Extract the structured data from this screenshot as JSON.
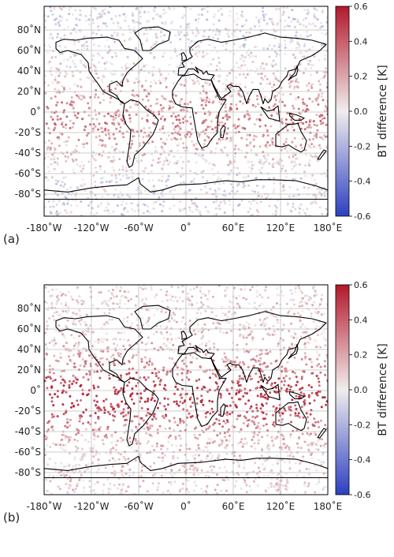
{
  "panels": [
    {
      "label": "(a)",
      "intensity": 0.55,
      "colorbar": {
        "label": "BT difference [K]",
        "ticks": [
          "0.6",
          "0.4",
          "0.2",
          "0.0",
          "-0.2",
          "-0.4",
          "-0.6"
        ]
      },
      "xticks": [
        "-180˚W",
        "-120˚W",
        "-60˚W",
        "0˚",
        "60˚E",
        "120˚E",
        "180˚E"
      ],
      "yticks": [
        "80˚N",
        "60˚N",
        "40˚N",
        "20˚N",
        "0˚",
        "-20˚S",
        "-40˚S",
        "-60˚S",
        "-80˚S"
      ]
    },
    {
      "label": "(b)",
      "intensity": 0.85,
      "colorbar": {
        "label": "BT difference [K]",
        "ticks": [
          "0.6",
          "0.4",
          "0.2",
          "0.0",
          "-0.2",
          "-0.4",
          "-0.6"
        ]
      },
      "xticks": [
        "-180˚W",
        "-120˚W",
        "-60˚W",
        "0˚",
        "60˚E",
        "120˚E",
        "180˚E"
      ],
      "yticks": [
        "80˚N",
        "60˚N",
        "40˚N",
        "20˚N",
        "0˚",
        "-20˚S",
        "-40˚S",
        "-60˚S",
        "-80˚S"
      ]
    }
  ],
  "colors": {
    "coast": "#000000",
    "grid": "#bdbdbd",
    "high": "#b2182b",
    "mid": "#f0eded",
    "low": "#2c3fc0"
  }
}
